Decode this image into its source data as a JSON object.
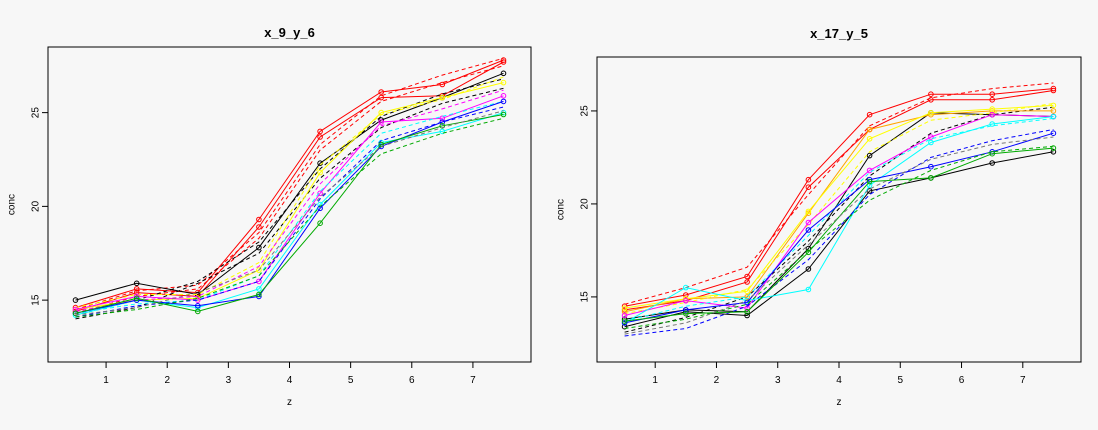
{
  "chart_data": [
    {
      "type": "line",
      "title": "x_9_y_6",
      "xlabel": "z",
      "ylabel": "conc",
      "x": [
        0.5,
        1.5,
        2.5,
        3.5,
        4.5,
        5.5,
        6.5,
        7.5
      ],
      "xticks": [
        1,
        2,
        3,
        4,
        5,
        6,
        7
      ],
      "yticks": [
        15,
        20,
        25
      ],
      "xlim": [
        0.05,
        7.95
      ],
      "ylim": [
        11.7,
        28.5
      ],
      "grid": false,
      "series": [
        {
          "color": "#ff0000",
          "style": "solid",
          "markers": true,
          "values": [
            14.6,
            15.6,
            15.4,
            19.3,
            24.0,
            26.1,
            26.5,
            27.8
          ]
        },
        {
          "color": "#ff0000",
          "style": "solid",
          "markers": true,
          "values": [
            14.4,
            15.4,
            15.2,
            18.9,
            23.7,
            25.8,
            25.9,
            27.7
          ]
        },
        {
          "color": "#ff0000",
          "style": "dashed",
          "markers": false,
          "values": [
            14.5,
            15.5,
            15.8,
            18.6,
            23.3,
            25.9,
            27.0,
            27.9
          ]
        },
        {
          "color": "#ff0000",
          "style": "dashed",
          "markers": false,
          "values": [
            14.3,
            15.2,
            15.6,
            18.3,
            23.0,
            25.6,
            26.6,
            27.5
          ]
        },
        {
          "color": "#000000",
          "style": "solid",
          "markers": true,
          "values": [
            15.0,
            15.9,
            15.3,
            17.8,
            22.3,
            24.6,
            25.8,
            27.1
          ]
        },
        {
          "color": "#000000",
          "style": "dashed",
          "markers": false,
          "values": [
            14.2,
            15.0,
            16.0,
            18.1,
            22.0,
            24.8,
            26.0,
            26.8
          ]
        },
        {
          "color": "#000000",
          "style": "dashed",
          "markers": false,
          "values": [
            14.0,
            14.6,
            15.9,
            17.5,
            21.5,
            24.2,
            25.5,
            26.3
          ]
        },
        {
          "color": "#ffff00",
          "style": "solid",
          "markers": true,
          "values": [
            14.5,
            15.0,
            15.1,
            16.6,
            21.8,
            25.0,
            25.8,
            26.6
          ]
        },
        {
          "color": "#ffff00",
          "style": "dashed",
          "markers": false,
          "values": [
            14.6,
            15.3,
            15.3,
            17.0,
            22.2,
            24.9,
            25.7,
            26.9
          ]
        },
        {
          "color": "#ff00ff",
          "style": "solid",
          "markers": true,
          "values": [
            14.5,
            15.2,
            15.0,
            16.0,
            20.7,
            24.5,
            24.7,
            25.9
          ]
        },
        {
          "color": "#ff00ff",
          "style": "dashed",
          "markers": false,
          "values": [
            14.4,
            15.0,
            15.2,
            16.8,
            21.2,
            24.3,
            25.2,
            26.2
          ]
        },
        {
          "color": "#00ffff",
          "style": "solid",
          "markers": true,
          "values": [
            14.2,
            15.0,
            14.6,
            15.6,
            20.1,
            23.4,
            24.0,
            25.0
          ]
        },
        {
          "color": "#00ffff",
          "style": "dashed",
          "markers": false,
          "values": [
            14.3,
            14.8,
            15.0,
            16.3,
            20.8,
            23.9,
            24.8,
            25.6
          ]
        },
        {
          "color": "#0000ff",
          "style": "solid",
          "markers": true,
          "values": [
            14.3,
            15.0,
            14.7,
            15.2,
            19.9,
            23.2,
            24.5,
            25.6
          ]
        },
        {
          "color": "#0000ff",
          "style": "dashed",
          "markers": false,
          "values": [
            14.1,
            14.7,
            15.0,
            16.0,
            20.4,
            23.5,
            24.5,
            25.3
          ]
        },
        {
          "color": "#00aa00",
          "style": "solid",
          "markers": true,
          "values": [
            14.3,
            15.1,
            14.4,
            15.3,
            19.1,
            23.3,
            24.3,
            24.9
          ]
        },
        {
          "color": "#00aa00",
          "style": "dashed",
          "markers": false,
          "values": [
            14.1,
            14.5,
            15.1,
            16.3,
            20.0,
            22.8,
            23.9,
            24.7
          ]
        },
        {
          "color": "#777777",
          "style": "dashed",
          "markers": false,
          "values": [
            14.2,
            14.6,
            15.4,
            16.6,
            20.5,
            23.2,
            24.2,
            25.1
          ]
        }
      ]
    },
    {
      "type": "line",
      "title": "x_17_y_5",
      "xlabel": "z",
      "ylabel": "conc",
      "x": [
        0.5,
        1.5,
        2.5,
        3.5,
        4.5,
        5.5,
        6.5,
        7.5
      ],
      "xticks": [
        1,
        2,
        3,
        4,
        5,
        6,
        7
      ],
      "yticks": [
        15,
        20,
        25
      ],
      "xlim": [
        0.05,
        7.95
      ],
      "ylim": [
        11.5,
        27.9
      ],
      "grid": false,
      "series": [
        {
          "color": "#ff0000",
          "style": "solid",
          "markers": true,
          "values": [
            14.5,
            15.1,
            16.1,
            21.3,
            24.8,
            25.9,
            25.9,
            26.2
          ]
        },
        {
          "color": "#ff0000",
          "style": "solid",
          "markers": true,
          "values": [
            14.3,
            14.8,
            15.8,
            20.9,
            24.0,
            25.6,
            25.6,
            26.1
          ]
        },
        {
          "color": "#ff0000",
          "style": "dashed",
          "markers": false,
          "values": [
            14.6,
            15.5,
            16.6,
            20.5,
            24.2,
            25.7,
            26.2,
            26.5
          ]
        },
        {
          "color": "#000000",
          "style": "solid",
          "markers": true,
          "values": [
            13.8,
            14.3,
            14.2,
            17.6,
            22.6,
            24.9,
            24.8,
            24.7
          ]
        },
        {
          "color": "#000000",
          "style": "solid",
          "markers": true,
          "values": [
            13.4,
            14.2,
            14.0,
            16.5,
            20.7,
            21.4,
            22.2,
            22.8
          ]
        },
        {
          "color": "#000000",
          "style": "dashed",
          "markers": false,
          "values": [
            13.1,
            13.9,
            15.0,
            18.0,
            21.5,
            23.8,
            24.8,
            25.2
          ]
        },
        {
          "color": "#ffa500",
          "style": "solid",
          "markers": true,
          "values": [
            14.2,
            14.9,
            15.0,
            19.5,
            24.0,
            24.8,
            25.0,
            25.0
          ]
        },
        {
          "color": "#ffff00",
          "style": "solid",
          "markers": true,
          "values": [
            14.4,
            14.9,
            15.3,
            19.6,
            23.5,
            24.9,
            25.1,
            25.3
          ]
        },
        {
          "color": "#ffff00",
          "style": "dashed",
          "markers": false,
          "values": [
            14.1,
            14.7,
            15.4,
            18.9,
            22.8,
            24.5,
            24.9,
            25.4
          ]
        },
        {
          "color": "#ff00ff",
          "style": "solid",
          "markers": true,
          "values": [
            14.0,
            14.8,
            14.4,
            19.0,
            21.8,
            23.6,
            24.8,
            24.7
          ]
        },
        {
          "color": "#00ffff",
          "style": "solid",
          "markers": true,
          "values": [
            13.6,
            15.5,
            14.8,
            15.4,
            21.0,
            23.3,
            24.3,
            24.7
          ]
        },
        {
          "color": "#00ffff",
          "style": "dashed",
          "markers": false,
          "values": [
            13.7,
            14.5,
            15.0,
            18.3,
            21.7,
            23.5,
            24.2,
            24.6
          ]
        },
        {
          "color": "#0000ff",
          "style": "solid",
          "markers": true,
          "values": [
            13.6,
            14.3,
            14.7,
            18.6,
            21.3,
            22.0,
            22.8,
            23.8
          ]
        },
        {
          "color": "#0000ff",
          "style": "dashed",
          "markers": false,
          "values": [
            12.9,
            13.3,
            14.5,
            17.0,
            20.5,
            22.5,
            23.4,
            24.0
          ]
        },
        {
          "color": "#00aa00",
          "style": "solid",
          "markers": true,
          "values": [
            13.7,
            14.1,
            14.2,
            17.4,
            21.2,
            21.4,
            22.7,
            23.0
          ]
        },
        {
          "color": "#00aa00",
          "style": "dashed",
          "markers": false,
          "values": [
            13.3,
            13.8,
            14.6,
            17.5,
            20.2,
            21.8,
            22.8,
            23.1
          ]
        },
        {
          "color": "#777777",
          "style": "dashed",
          "markers": false,
          "values": [
            13.0,
            13.6,
            14.8,
            17.8,
            20.8,
            22.4,
            23.2,
            23.6
          ]
        }
      ]
    }
  ]
}
